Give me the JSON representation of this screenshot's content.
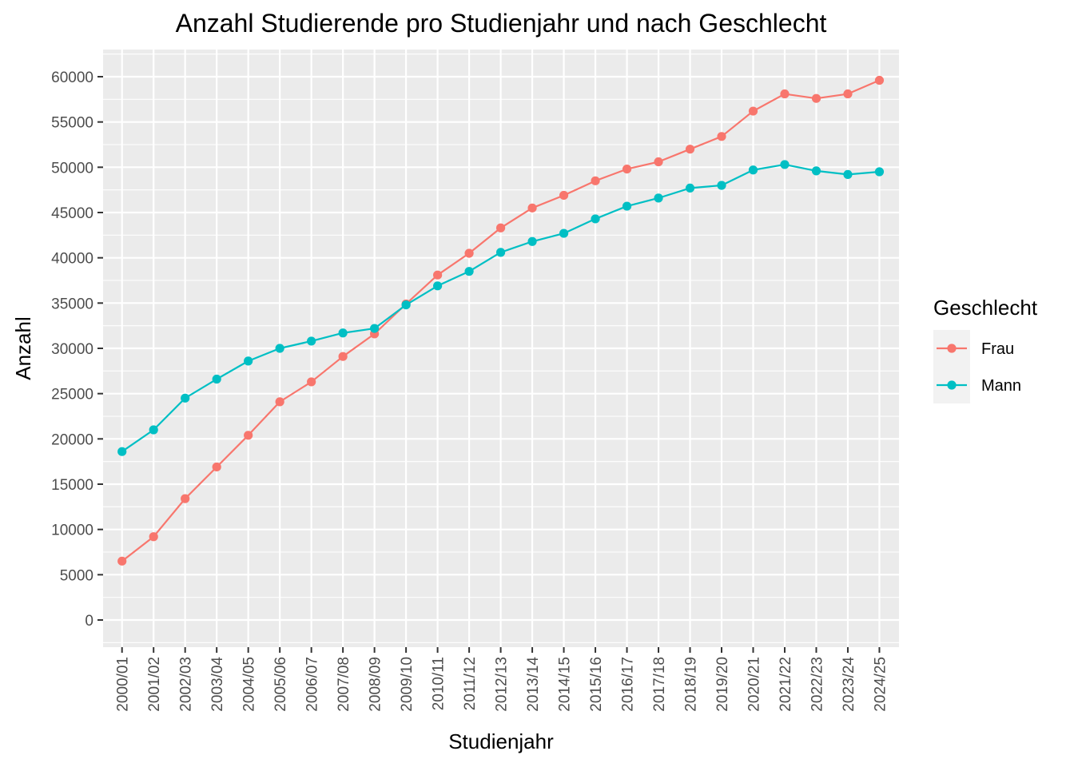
{
  "chart_data": {
    "type": "line",
    "title": "Anzahl Studierende pro Studienjahr und nach Geschlecht",
    "xlabel": "Studienjahr",
    "ylabel": "Anzahl",
    "categories": [
      "2000/01",
      "2001/02",
      "2002/03",
      "2003/04",
      "2004/05",
      "2005/06",
      "2006/07",
      "2007/08",
      "2008/09",
      "2009/10",
      "2010/11",
      "2011/12",
      "2012/13",
      "2013/14",
      "2014/15",
      "2015/16",
      "2016/17",
      "2017/18",
      "2018/19",
      "2019/20",
      "2020/21",
      "2021/22",
      "2022/23",
      "2023/24",
      "2024/25"
    ],
    "y_ticks": [
      0,
      5000,
      10000,
      15000,
      20000,
      25000,
      30000,
      35000,
      40000,
      45000,
      50000,
      55000,
      60000
    ],
    "ylim": [
      -3000,
      63000
    ],
    "grid": true,
    "legend": {
      "title": "Geschlecht",
      "position": "right"
    },
    "series": [
      {
        "name": "Frau",
        "color": "#F8766D",
        "values": [
          6500,
          9200,
          13400,
          16900,
          20400,
          24100,
          26300,
          29100,
          31600,
          34900,
          38100,
          40500,
          43300,
          45500,
          46900,
          48500,
          49800,
          50600,
          52000,
          53400,
          56200,
          58100,
          57600,
          58100,
          59600
        ]
      },
      {
        "name": "Mann",
        "color": "#00BFC4",
        "values": [
          18600,
          21000,
          24500,
          26600,
          28600,
          30000,
          30800,
          31700,
          32200,
          34800,
          36900,
          38500,
          40600,
          41800,
          42700,
          44300,
          45700,
          46600,
          47700,
          48000,
          49700,
          50300,
          49600,
          49200,
          49500
        ]
      }
    ],
    "colors": {
      "panel": "#EBEBEB",
      "grid": "#FFFFFF",
      "legend_key": "#F2F2F2",
      "tick_text": "#4D4D4D",
      "tick_mark": "#333333"
    }
  }
}
